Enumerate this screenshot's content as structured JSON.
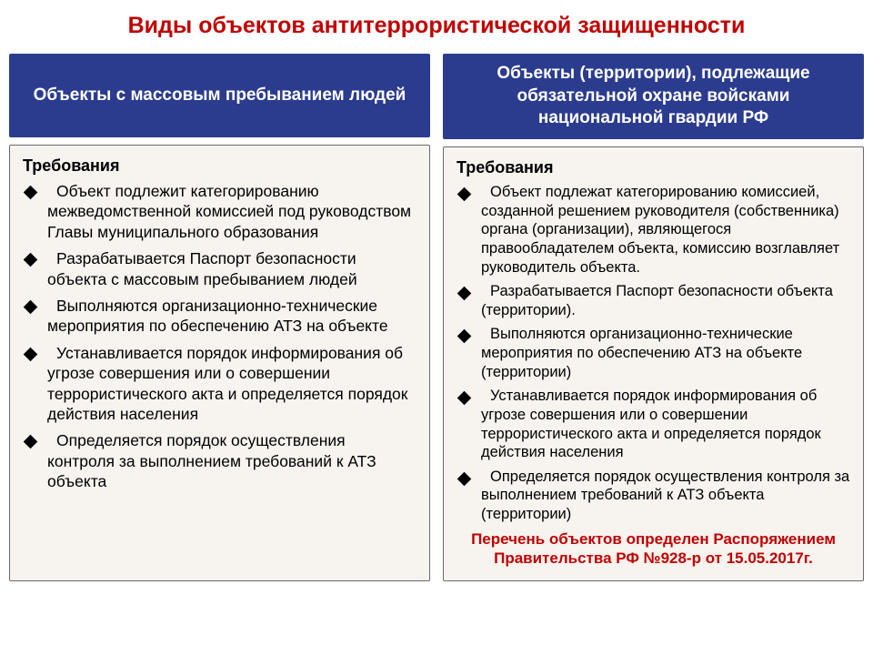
{
  "title": "Виды объектов антитеррористической защищенности",
  "colors": {
    "title": "#c00000",
    "header_bg": "#2b3c8f",
    "header_text": "#ffffff",
    "body_bg": "#f7f3ef",
    "body_border": "#6a6a6a",
    "text": "#000000",
    "footnote": "#c00000"
  },
  "left": {
    "header": "Объекты с массовым пребыванием людей",
    "req_title": "Требования",
    "bullets": [
      "Объект подлежит категорированию межведомственной комиссией под руководством Главы муниципального образования",
      "Разрабатывается Паспорт безопасности объекта с массовым пребыванием людей",
      "Выполняются организационно-технические мероприятия по обеспечению АТЗ на объекте",
      "Устанавливается порядок информирования об угрозе совершения или о совершении террористического акта и определяется порядок действия населения",
      "Определяется порядок осуществления контроля за выполнением требований к АТЗ объекта"
    ]
  },
  "right": {
    "header": "Объекты (территории), подлежащие обязательной охране войсками национальной гвардии РФ",
    "req_title": "Требования",
    "bullets": [
      "Объект подлежат категорированию комиссией, созданной решением руководителя (собственника) органа (организации), являющегося правообладателем объекта, комиссию возглавляет руководитель объекта.",
      "Разрабатывается Паспорт безопасности объекта (территории).",
      "Выполняются организационно-технические мероприятия по обеспечению АТЗ на объекте (территории)",
      "Устанавливается порядок информирования об угрозе совершения или о совершении террористического акта и определяется порядок действия населения",
      "Определяется порядок осуществления контроля за выполнением требований к АТЗ объекта (территории)"
    ],
    "footnote": "Перечень объектов определен Распоряжением Правительства РФ №928-р от 15.05.2017г."
  }
}
